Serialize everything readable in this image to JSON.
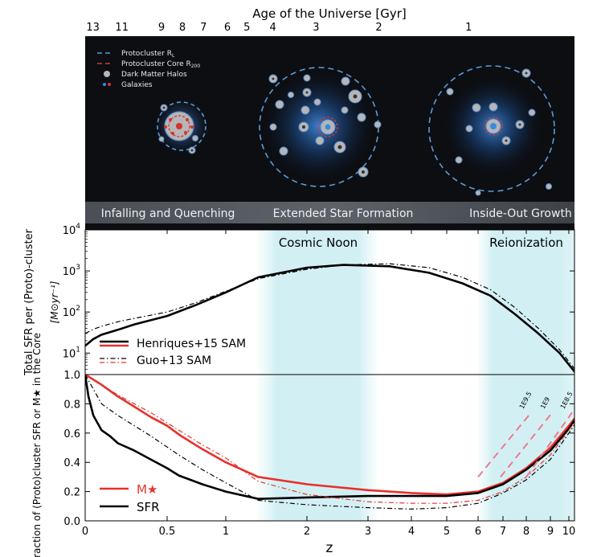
{
  "top_axis": {
    "label": "Age of the Universe  [Gyr]",
    "ticks": [
      {
        "label": "13",
        "z": 0.047
      },
      {
        "label": "11",
        "z": 0.224
      },
      {
        "label": "9",
        "z": 0.466
      },
      {
        "label": "8",
        "z": 0.63
      },
      {
        "label": "7",
        "z": 0.81
      },
      {
        "label": "6",
        "z": 1.02
      },
      {
        "label": "5",
        "z": 1.26
      },
      {
        "label": "4",
        "z": 1.58
      },
      {
        "label": "3",
        "z": 2.15
      },
      {
        "label": "2",
        "z": 3.25
      },
      {
        "label": "1",
        "z": 5.7
      }
    ]
  },
  "illustration": {
    "legend": [
      {
        "label": "Protocluster R",
        "sub": "L",
        "kind": "dashed-blue"
      },
      {
        "label": "Protocluster Core R",
        "sub": "200",
        "kind": "dashed-red"
      },
      {
        "label": "Dark Matter Halos",
        "kind": "halo"
      },
      {
        "label": "Galaxies",
        "kind": "galaxies"
      }
    ],
    "stages": [
      "Infalling and Quenching",
      "Extended Star Formation",
      "Inside-Out Growth"
    ]
  },
  "chart_data": [
    {
      "type": "line",
      "ylabel": "Total SFR per (Proto)-cluster",
      "ylabel_unit": "[M⊙yr⁻¹]",
      "yscale": "log",
      "ylim": [
        3,
        10000
      ],
      "yticks": [
        {
          "base": "10",
          "exp": "1",
          "v": 10
        },
        {
          "base": "10",
          "exp": "2",
          "v": 100
        },
        {
          "base": "10",
          "exp": "3",
          "v": 1000
        },
        {
          "base": "10",
          "exp": "4",
          "v": 10000
        }
      ],
      "shaded_regions": [
        {
          "label": "Cosmic Noon",
          "z_from": 1.4,
          "z_to": 3.2
        },
        {
          "label": "Reionization",
          "z_from": 6.0,
          "z_to": 10.5
        }
      ],
      "legend": [
        {
          "label": "Henriques+15 SAM",
          "style": "solid"
        },
        {
          "label": "Guo+13 SAM",
          "style": "dashdot"
        }
      ],
      "series": [
        {
          "name": "Henriques+15 SAM",
          "color": "#000000",
          "style": "solid",
          "x": [
            0,
            0.05,
            0.1,
            0.2,
            0.3,
            0.5,
            0.75,
            1,
            1.4,
            2,
            2.6,
            3.5,
            4.5,
            5.5,
            6.5,
            7.5,
            8.5,
            9.5,
            10.5
          ],
          "y": [
            15,
            22,
            28,
            37,
            50,
            80,
            150,
            300,
            700,
            1200,
            1400,
            1300,
            900,
            500,
            250,
            90,
            30,
            10,
            3
          ]
        },
        {
          "name": "Guo+13 SAM",
          "color": "#000000",
          "style": "dashdot",
          "x": [
            0,
            0.05,
            0.1,
            0.2,
            0.3,
            0.5,
            0.75,
            1,
            1.4,
            2,
            2.6,
            3.5,
            4.5,
            5.5,
            6.5,
            7.5,
            8.5,
            9.5,
            10.5
          ],
          "y": [
            30,
            38,
            45,
            58,
            70,
            100,
            170,
            320,
            650,
            1100,
            1400,
            1500,
            1200,
            700,
            350,
            130,
            40,
            12,
            3.5
          ]
        }
      ]
    },
    {
      "type": "line",
      "xlabel": "z",
      "ylabel": "Fraction of (Proto)cluster SFR or M★ in the Core",
      "ylim": [
        0,
        1
      ],
      "yticks": [
        "0.0",
        "0.2",
        "0.4",
        "0.6",
        "0.8",
        "1.0"
      ],
      "xticks": [
        {
          "label": "0",
          "z": 0
        },
        {
          "label": "0.5",
          "z": 0.5
        },
        {
          "label": "1",
          "z": 1
        },
        {
          "label": "2",
          "z": 2
        },
        {
          "label": "3",
          "z": 3
        },
        {
          "label": "4",
          "z": 4
        },
        {
          "label": "5",
          "z": 5
        },
        {
          "label": "6",
          "z": 6
        },
        {
          "label": "7",
          "z": 7
        },
        {
          "label": "8",
          "z": 8
        },
        {
          "label": "9",
          "z": 9
        },
        {
          "label": "10",
          "z": 10
        }
      ],
      "shaded_regions": [
        {
          "z_from": 1.4,
          "z_to": 3.2
        },
        {
          "z_from": 6.0,
          "z_to": 10.5
        }
      ],
      "legend": [
        {
          "label": "M★",
          "color": "#e8302c"
        },
        {
          "label": "SFR",
          "color": "#000000"
        }
      ],
      "series": [
        {
          "name": "M★",
          "color": "#e8302c",
          "style": "solid",
          "x": [
            0,
            0.1,
            0.2,
            0.3,
            0.4,
            0.5,
            0.6,
            0.8,
            1,
            1.4,
            2,
            3,
            4,
            5,
            6,
            7,
            8,
            9,
            10,
            10.5
          ],
          "y": [
            1.0,
            0.93,
            0.85,
            0.78,
            0.71,
            0.65,
            0.59,
            0.49,
            0.4,
            0.3,
            0.25,
            0.21,
            0.19,
            0.18,
            0.2,
            0.26,
            0.36,
            0.5,
            0.65,
            0.72
          ]
        },
        {
          "name": "SFR",
          "color": "#000000",
          "style": "solid",
          "x": [
            0,
            0.02,
            0.05,
            0.1,
            0.15,
            0.2,
            0.3,
            0.4,
            0.5,
            0.6,
            0.8,
            1,
            1.4,
            2,
            3,
            4,
            5,
            6,
            7,
            8,
            9,
            10,
            10.5
          ],
          "y": [
            1.0,
            0.85,
            0.72,
            0.62,
            0.58,
            0.53,
            0.48,
            0.42,
            0.36,
            0.31,
            0.25,
            0.2,
            0.15,
            0.16,
            0.17,
            0.17,
            0.17,
            0.19,
            0.25,
            0.35,
            0.48,
            0.63,
            0.71
          ]
        },
        {
          "name": "M★ Guo+13",
          "color": "#e8302c",
          "style": "dashdot",
          "x": [
            0,
            0.2,
            0.4,
            0.6,
            0.8,
            1,
            1.4,
            2,
            3,
            4,
            5,
            6,
            7,
            8,
            9,
            10,
            10.5
          ],
          "y": [
            1.0,
            0.86,
            0.74,
            0.62,
            0.52,
            0.43,
            0.27,
            0.18,
            0.13,
            0.12,
            0.12,
            0.14,
            0.2,
            0.3,
            0.45,
            0.62,
            0.7
          ]
        },
        {
          "name": "SFR Guo+13",
          "color": "#000000",
          "style": "dashdot",
          "x": [
            0,
            0.1,
            0.2,
            0.4,
            0.6,
            0.8,
            1,
            1.4,
            2,
            3,
            4,
            5,
            6,
            7,
            8,
            9,
            10,
            10.5
          ],
          "y": [
            1.0,
            0.8,
            0.72,
            0.58,
            0.45,
            0.35,
            0.26,
            0.14,
            0.11,
            0.09,
            0.08,
            0.09,
            0.12,
            0.19,
            0.28,
            0.42,
            0.6,
            0.68
          ]
        },
        {
          "name": "1E9.5",
          "color": "#f07890",
          "style": "dashed",
          "x": [
            6.0,
            8.2
          ],
          "y": [
            0.3,
            0.74
          ]
        },
        {
          "name": "1E9",
          "color": "#f07890",
          "style": "dashed",
          "x": [
            6.9,
            9.1
          ],
          "y": [
            0.3,
            0.74
          ]
        },
        {
          "name": "1E8.5",
          "color": "#f07890",
          "style": "dashed",
          "x": [
            8.0,
            10.2
          ],
          "y": [
            0.3,
            0.74
          ]
        }
      ],
      "line_labels": [
        "1E9.5",
        "1E9",
        "1E8.5"
      ]
    }
  ]
}
